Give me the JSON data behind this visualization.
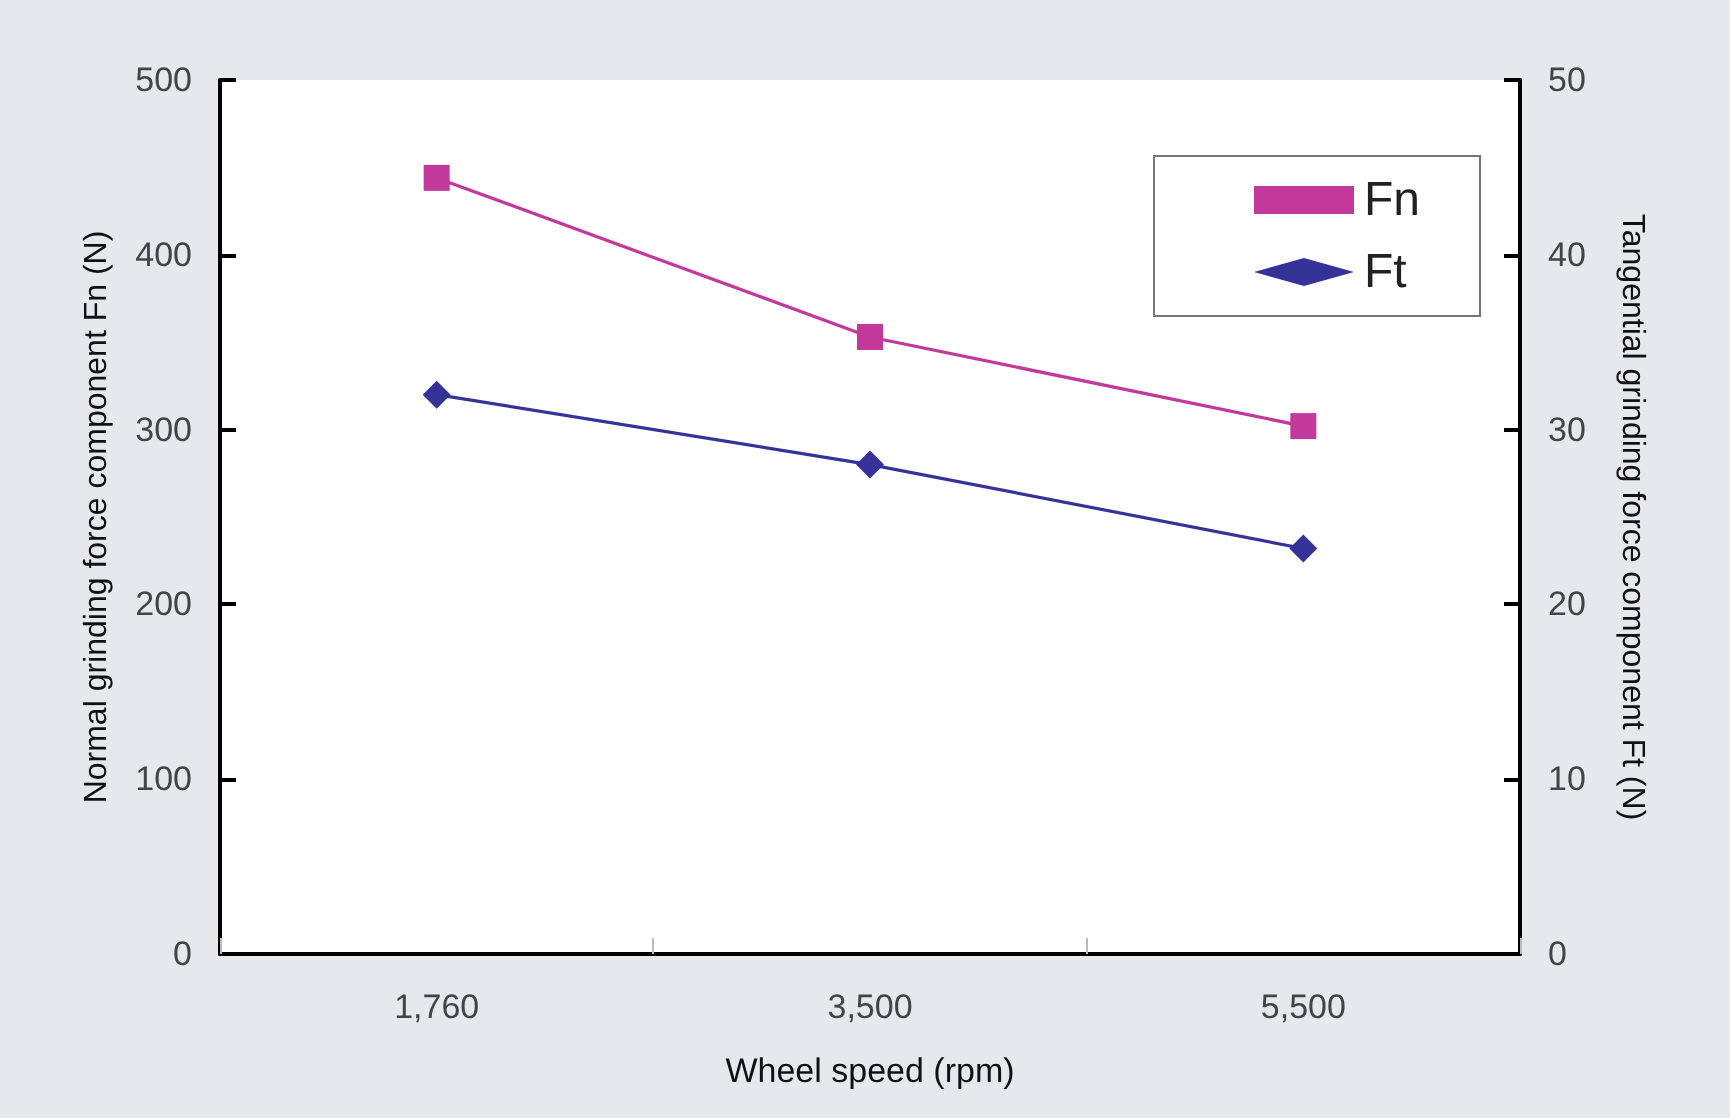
{
  "chart_data": {
    "type": "line",
    "xlabel": "Wheel speed (rpm)",
    "ylabel": "Normal grinding force component Fn (N)",
    "y2label": "Tangential grinding force component Ft (N)",
    "categories": [
      "1,760",
      "3,500",
      "5,500"
    ],
    "series": [
      {
        "name": "Fn",
        "color": "#c2389b",
        "marker": "square",
        "values": [
          444,
          353,
          302
        ]
      },
      {
        "name": "Ft",
        "color": "#35329a",
        "marker": "diamond",
        "axis": "y2",
        "values": [
          32.0,
          28.0,
          23.2
        ]
      }
    ],
    "ylim": [
      0,
      500
    ],
    "yticks": [
      0,
      100,
      200,
      300,
      400,
      500
    ],
    "y2lim": [
      0,
      50
    ],
    "y2ticks": [
      0,
      10,
      20,
      30,
      40,
      50
    ],
    "grid": false,
    "legend": "top right",
    "line_style": "solid"
  }
}
